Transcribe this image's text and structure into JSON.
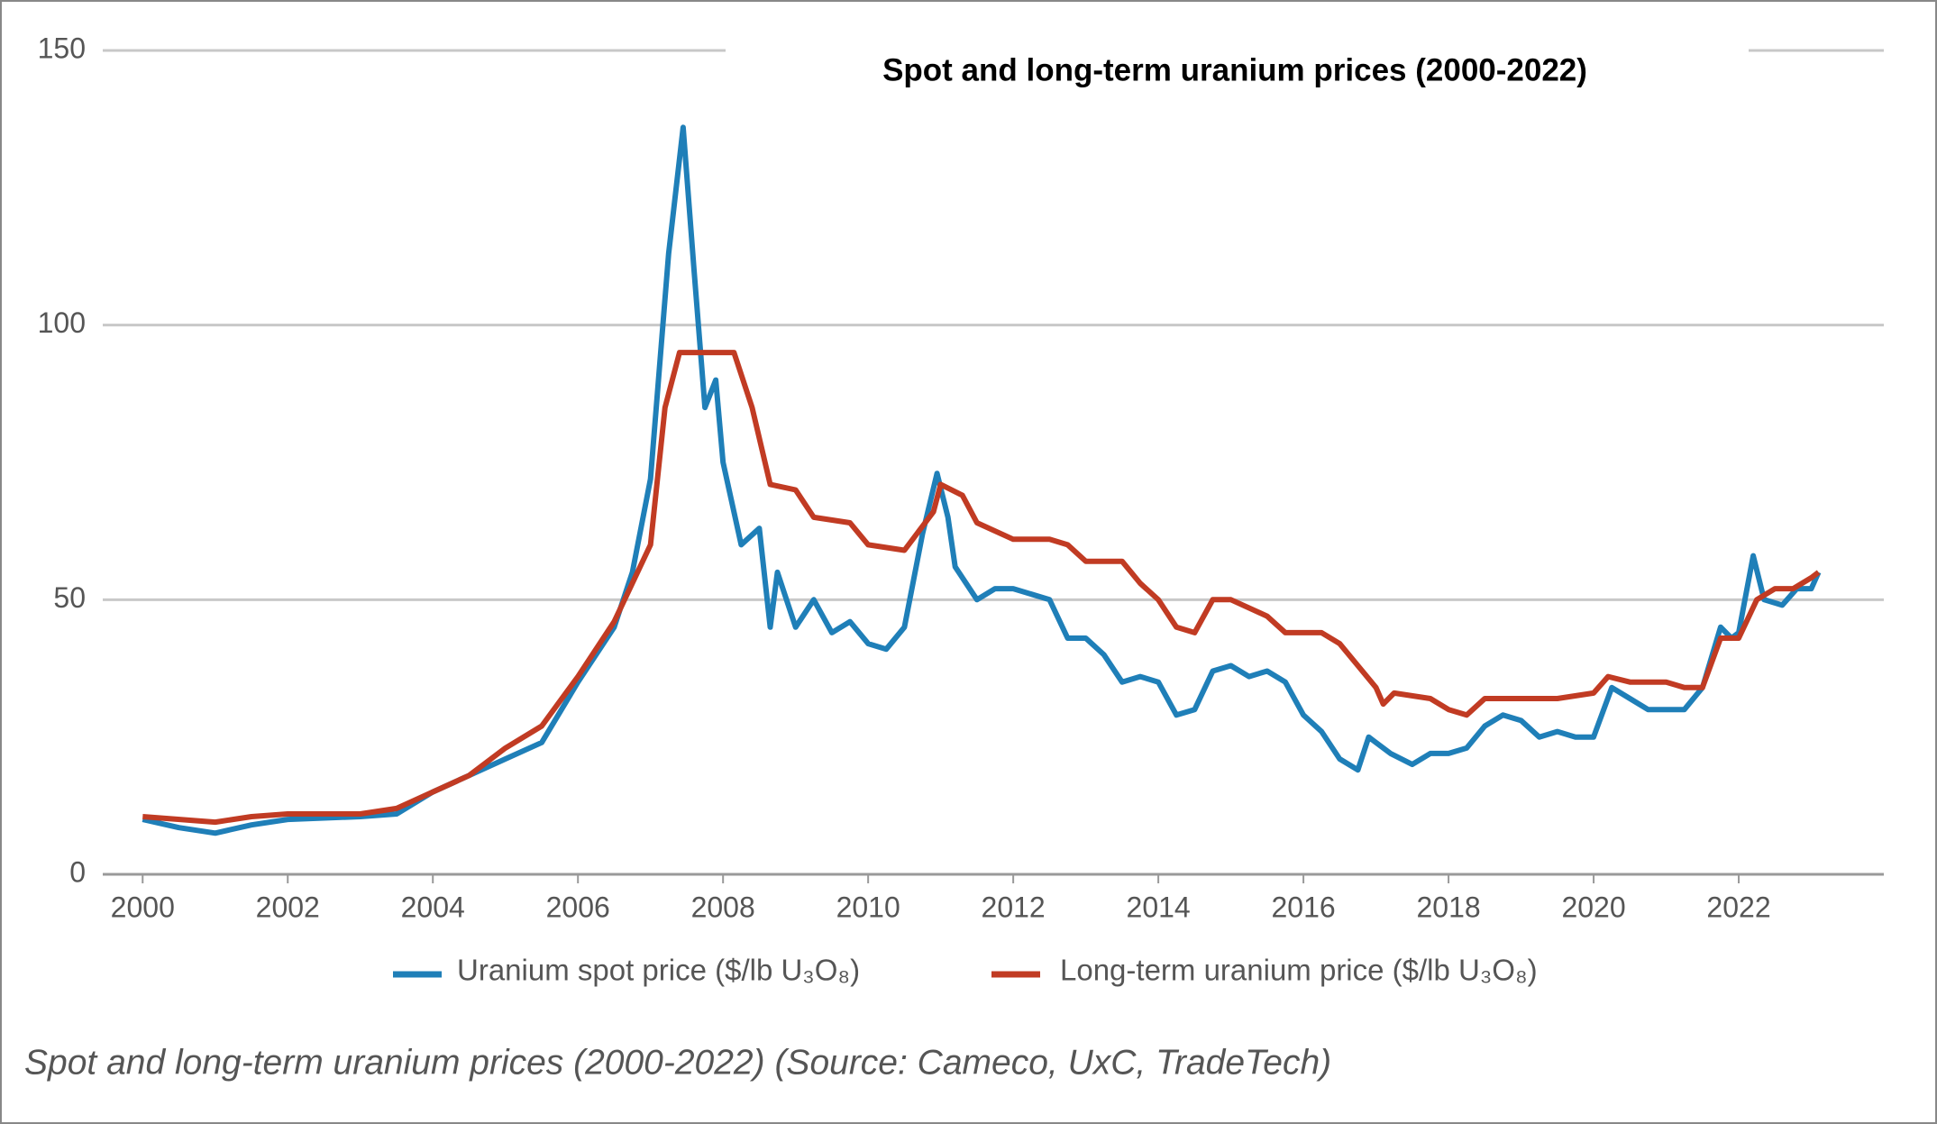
{
  "chart_data": {
    "type": "line",
    "title": "Spot and long-term uranium prices (2000-2022)",
    "caption": "Spot and long-term uranium prices (2000-2022) (Source: Cameco, UxC, TradeTech)",
    "xlim": [
      1999.45,
      2024
    ],
    "xticks": [
      2000,
      2002,
      2004,
      2006,
      2008,
      2010,
      2012,
      2014,
      2016,
      2018,
      2020,
      2022
    ],
    "ylim": [
      0,
      150
    ],
    "yticks": [
      0,
      50,
      100,
      150
    ],
    "grid": true,
    "legend": "bottom",
    "series": [
      {
        "name": "Uranium spot price ($/lb U₃O₈)",
        "color": "#1f7fb8",
        "x": [
          2000,
          2000.5,
          2001,
          2001.5,
          2002,
          2003,
          2003.5,
          2004,
          2004.5,
          2005,
          2005.5,
          2006,
          2006.5,
          2006.75,
          2007,
          2007.25,
          2007.45,
          2007.6,
          2007.75,
          2007.9,
          2008,
          2008.25,
          2008.5,
          2008.65,
          2008.75,
          2009,
          2009.25,
          2009.5,
          2009.75,
          2010,
          2010.25,
          2010.5,
          2010.75,
          2010.95,
          2011.1,
          2011.2,
          2011.5,
          2011.75,
          2012,
          2012.5,
          2012.75,
          2013,
          2013.25,
          2013.5,
          2013.75,
          2014,
          2014.25,
          2014.5,
          2014.75,
          2015,
          2015.25,
          2015.5,
          2015.75,
          2016,
          2016.25,
          2016.5,
          2016.75,
          2016.9,
          2017.2,
          2017.5,
          2017.75,
          2018,
          2018.25,
          2018.5,
          2018.75,
          2019,
          2019.25,
          2019.5,
          2019.75,
          2020,
          2020.25,
          2020.5,
          2020.75,
          2021,
          2021.25,
          2021.5,
          2021.75,
          2021.9,
          2022,
          2022.2,
          2022.35,
          2022.6,
          2022.8,
          2023,
          2023.1
        ],
        "values": [
          10,
          8.5,
          7.5,
          9,
          10,
          10.5,
          11,
          15,
          18,
          21,
          24,
          35,
          45,
          55,
          72,
          113,
          136,
          110,
          85,
          90,
          75,
          60,
          63,
          45,
          55,
          45,
          50,
          44,
          46,
          42,
          41,
          45,
          62,
          73,
          65,
          56,
          50,
          52,
          52,
          50,
          43,
          43,
          40,
          35,
          36,
          35,
          29,
          30,
          37,
          38,
          36,
          37,
          35,
          29,
          26,
          21,
          19,
          25,
          22,
          20,
          22,
          22,
          23,
          27,
          29,
          28,
          25,
          26,
          25,
          25,
          34,
          32,
          30,
          30,
          30,
          34,
          45,
          43,
          44,
          58,
          50,
          49,
          52,
          52,
          55
        ]
      },
      {
        "name": "Long-term uranium price ($/lb U₃O₈)",
        "color": "#c13b23",
        "x": [
          2000,
          2001,
          2001.5,
          2002,
          2003,
          2003.5,
          2004,
          2004.5,
          2005,
          2005.5,
          2006,
          2006.5,
          2007,
          2007.2,
          2007.4,
          2008.15,
          2008.4,
          2008.65,
          2009,
          2009.25,
          2009.75,
          2010,
          2010.5,
          2010.9,
          2011,
          2011.3,
          2011.5,
          2012,
          2012.5,
          2012.75,
          2013,
          2013.5,
          2013.75,
          2014,
          2014.25,
          2014.5,
          2014.75,
          2015,
          2015.5,
          2015.75,
          2016.25,
          2016.5,
          2016.75,
          2017,
          2017.1,
          2017.25,
          2017.75,
          2018,
          2018.25,
          2018.5,
          2019,
          2019.5,
          2020,
          2020.2,
          2020.5,
          2021,
          2021.25,
          2021.5,
          2021.75,
          2022,
          2022.25,
          2022.5,
          2022.75,
          2023,
          2023.1
        ],
        "values": [
          10.5,
          9.5,
          10.5,
          11,
          11,
          12,
          15,
          18,
          23,
          27,
          36,
          46,
          60,
          85,
          95,
          95,
          85,
          71,
          70,
          65,
          64,
          60,
          59,
          66,
          71,
          69,
          64,
          61,
          61,
          60,
          57,
          57,
          53,
          50,
          45,
          44,
          50,
          50,
          47,
          44,
          44,
          42,
          38,
          34,
          31,
          33,
          32,
          30,
          29,
          32,
          32,
          32,
          33,
          36,
          35,
          35,
          34,
          34,
          43,
          43,
          50,
          52,
          52,
          54,
          55
        ]
      }
    ]
  }
}
